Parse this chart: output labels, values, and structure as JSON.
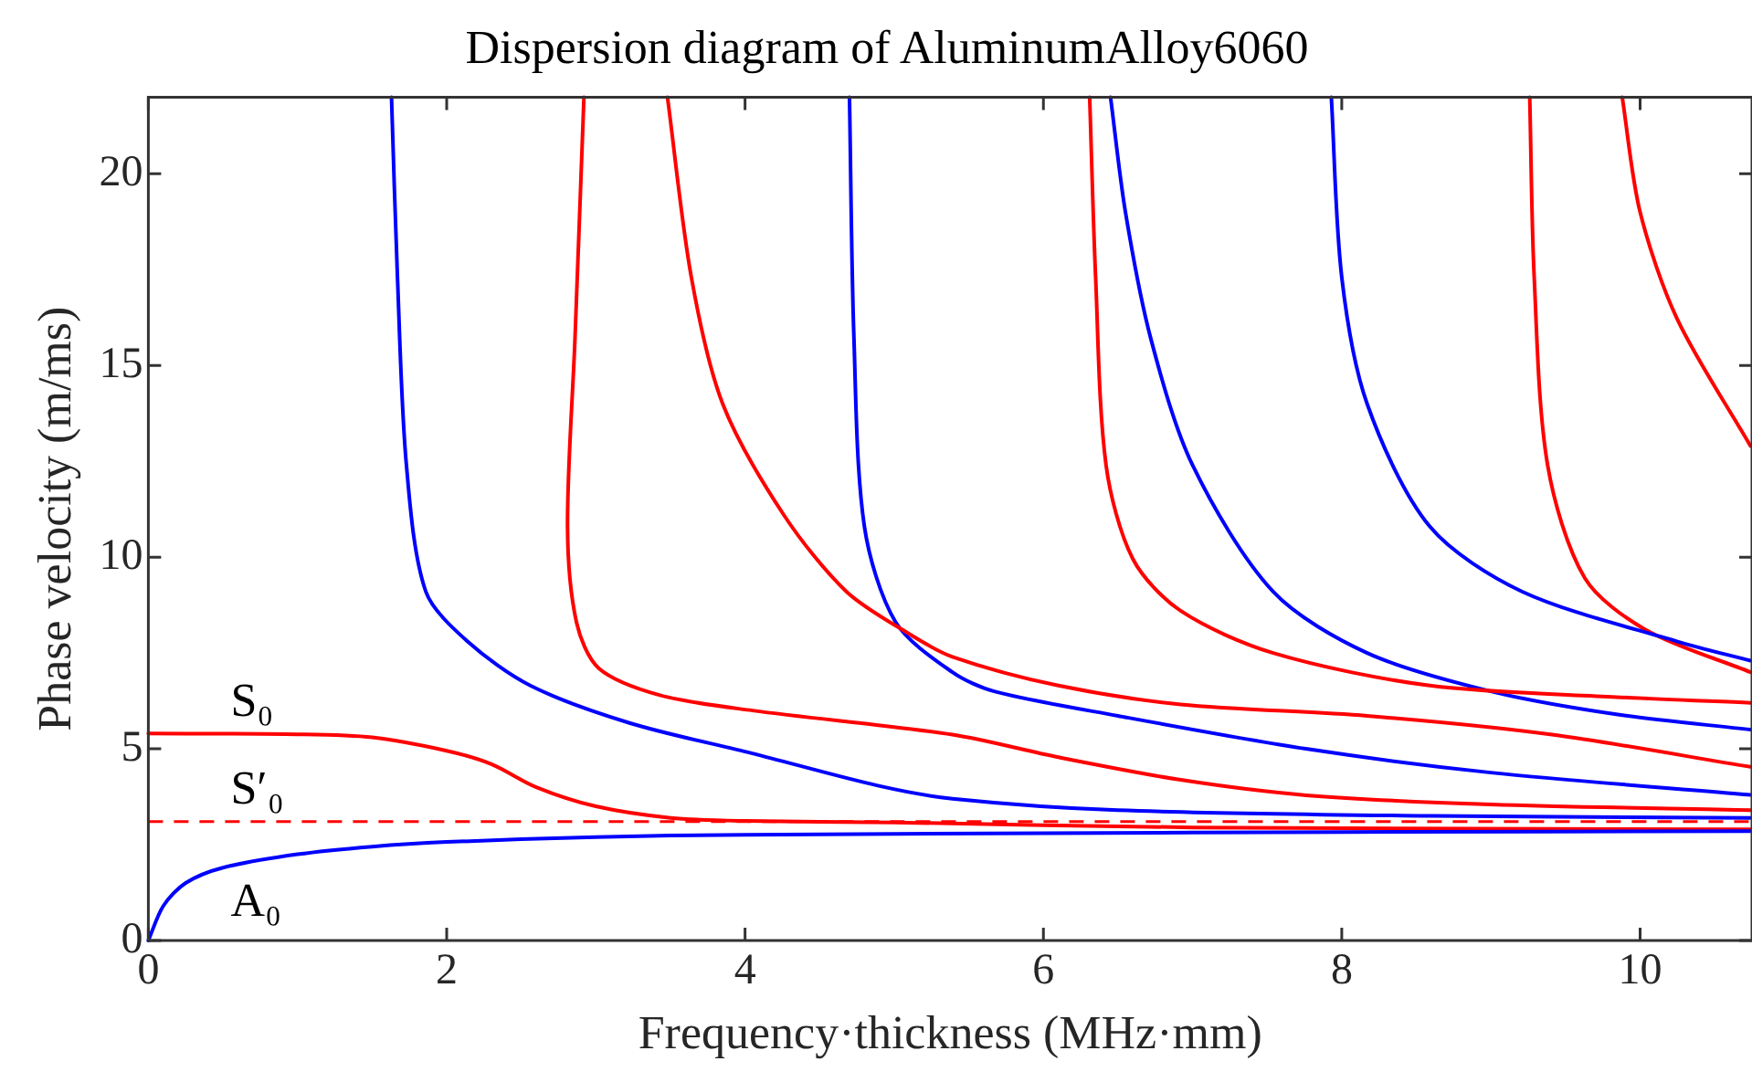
{
  "chart_data": {
    "type": "line",
    "title": "Dispersion diagram of AluminumAlloy6060",
    "xlabel": "Frequency·thickness (MHz·mm)",
    "ylabel": "Phase velocity (m/ms)",
    "xlim": [
      0,
      10.75
    ],
    "ylim": [
      0,
      22
    ],
    "xticks": [
      0,
      2,
      4,
      6,
      8,
      10
    ],
    "yticks": [
      0,
      5,
      10,
      15,
      20
    ],
    "grid": false,
    "legend": false,
    "marker": "none",
    "line_style": "solid",
    "series": [
      {
        "name": "A₀",
        "color": "#0000ff",
        "x": [
          0,
          0.1,
          0.25,
          0.5,
          1,
          1.5,
          2,
          3,
          4,
          6,
          8,
          10.74
        ],
        "values": [
          0,
          0.9,
          1.5,
          1.9,
          2.25,
          2.45,
          2.57,
          2.7,
          2.76,
          2.8,
          2.83,
          2.85
        ]
      },
      {
        "name": "S₀",
        "color": "#ff0000",
        "x": [
          0,
          1,
          1.5,
          2,
          2.3,
          2.6,
          3,
          3.5,
          4,
          5,
          7,
          10.74
        ],
        "values": [
          5.4,
          5.38,
          5.3,
          4.95,
          4.6,
          4.0,
          3.5,
          3.2,
          3.12,
          3.08,
          2.95,
          2.9
        ]
      },
      {
        "color": "#0000ff",
        "x": [
          1.63,
          1.67,
          1.73,
          1.86,
          2.14,
          2.56,
          3.23,
          4.05,
          4.89,
          5.39,
          6.5,
          8.6,
          10.74
        ],
        "values": [
          22,
          17.3,
          12.4,
          9.1,
          7.8,
          6.65,
          5.67,
          4.88,
          4.04,
          3.7,
          3.4,
          3.25,
          3.2
        ]
      },
      {
        "color": "#ff0000",
        "x": [
          2.92,
          2.86,
          2.81,
          2.87,
          3.02,
          3.43,
          4.05,
          5.39,
          6.1,
          6.92,
          7.76,
          9.0,
          10.74
        ],
        "values": [
          22,
          15.7,
          10.8,
          8.3,
          7.1,
          6.4,
          6.0,
          5.37,
          4.78,
          4.19,
          3.79,
          3.55,
          3.4
        ]
      },
      {
        "color": "#ff0000",
        "x": [
          3.48,
          3.64,
          3.85,
          4.26,
          4.68,
          5.1,
          5.39,
          6.1,
          6.92,
          8.17,
          9.41,
          10.74
        ],
        "values": [
          22,
          17.3,
          14.0,
          11.1,
          9.1,
          8.0,
          7.4,
          6.65,
          6.16,
          5.86,
          5.37,
          4.53
        ]
      },
      {
        "color": "#0000ff",
        "x": [
          4.7,
          4.73,
          4.8,
          5.01,
          5.39,
          5.67,
          6.5,
          7.76,
          9.0,
          10.74
        ],
        "values": [
          22,
          15.7,
          10.8,
          8.3,
          7.0,
          6.5,
          5.86,
          5.0,
          4.38,
          3.8
        ]
      },
      {
        "color": "#ff0000",
        "x": [
          6.31,
          6.35,
          6.42,
          6.6,
          6.92,
          7.54,
          8.59,
          9.84,
          10.74
        ],
        "values": [
          22,
          17.3,
          12.4,
          9.95,
          8.6,
          7.5,
          6.65,
          6.35,
          6.2
        ]
      },
      {
        "color": "#0000ff",
        "x": [
          6.45,
          6.55,
          6.72,
          7.0,
          7.54,
          8.17,
          9.0,
          9.84,
          10.74
        ],
        "values": [
          22,
          19.0,
          15.7,
          12.4,
          9.1,
          7.5,
          6.5,
          5.9,
          5.5
        ]
      },
      {
        "color": "#0000ff",
        "x": [
          7.93,
          8.0,
          8.17,
          8.59,
          9.21,
          10.25,
          10.74
        ],
        "values": [
          22,
          17.3,
          14.0,
          10.8,
          9.1,
          7.8,
          7.3
        ]
      },
      {
        "color": "#ff0000",
        "x": [
          9.26,
          9.29,
          9.38,
          9.63,
          10.04,
          10.74
        ],
        "values": [
          22,
          17.3,
          12.4,
          9.45,
          8.1,
          7.0
        ]
      },
      {
        "color": "#ff0000",
        "x": [
          9.88,
          10.0,
          10.25,
          10.74
        ],
        "values": [
          22,
          19.0,
          16.2,
          12.9
        ]
      }
    ],
    "ref_lines": [
      {
        "axis": "y",
        "value": 3.1,
        "color": "#ff0000",
        "line_style": "dashed",
        "label": "S′₀"
      }
    ]
  }
}
